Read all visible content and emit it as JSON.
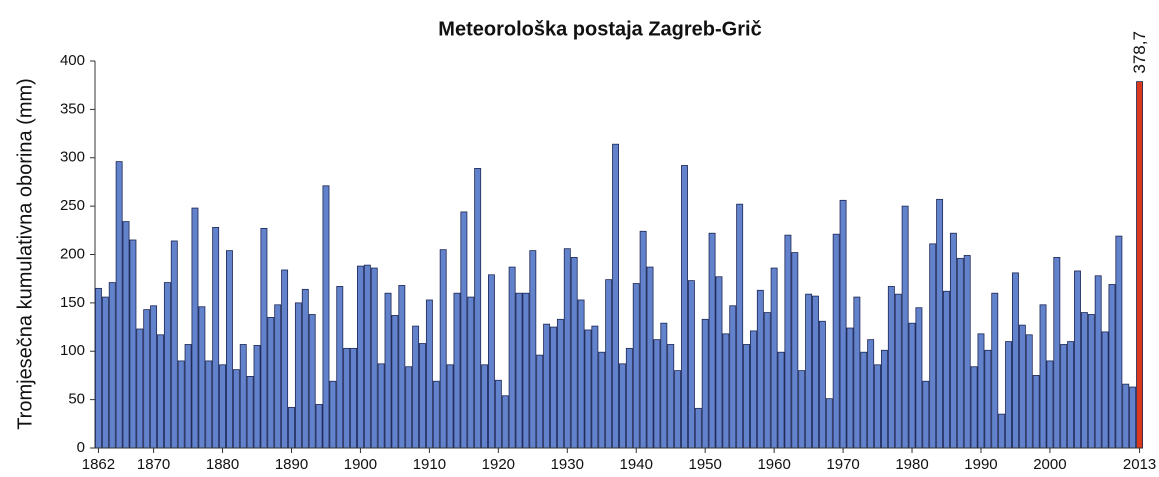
{
  "chart_data": {
    "type": "bar",
    "title": "Meteorološka postaja Zagreb-Grič",
    "y_label": "Tromjesečna kumulativna oborina (mm)",
    "categories": [
      "1862",
      null,
      null,
      null,
      null,
      null,
      null,
      null,
      "1870",
      null,
      null,
      null,
      null,
      null,
      null,
      null,
      null,
      null,
      "1880",
      null,
      null,
      null,
      null,
      null,
      null,
      null,
      null,
      null,
      "1890",
      null,
      null,
      null,
      null,
      null,
      null,
      null,
      null,
      null,
      "1900",
      null,
      null,
      null,
      null,
      null,
      null,
      null,
      null,
      null,
      "1910",
      null,
      null,
      null,
      null,
      null,
      null,
      null,
      null,
      null,
      "1920",
      null,
      null,
      null,
      null,
      null,
      null,
      null,
      null,
      null,
      "1930",
      null,
      null,
      null,
      null,
      null,
      null,
      null,
      null,
      null,
      "1940",
      null,
      null,
      null,
      null,
      null,
      null,
      null,
      null,
      null,
      "1950",
      null,
      null,
      null,
      null,
      null,
      null,
      null,
      null,
      null,
      "1960",
      null,
      null,
      null,
      null,
      null,
      null,
      null,
      null,
      null,
      "1970",
      null,
      null,
      null,
      null,
      null,
      null,
      null,
      null,
      null,
      "1980",
      null,
      null,
      null,
      null,
      null,
      null,
      null,
      null,
      null,
      "1990",
      null,
      null,
      null,
      null,
      null,
      null,
      null,
      null,
      null,
      "2000",
      null,
      null,
      null,
      null,
      null,
      null,
      null,
      null,
      null,
      null,
      null,
      null,
      "2013"
    ],
    "values": [
      165,
      156,
      171,
      296,
      234,
      215,
      123,
      143,
      147,
      117,
      171,
      214,
      90,
      107,
      248,
      146,
      90,
      228,
      86,
      204,
      81,
      107,
      74,
      106,
      227,
      135,
      148,
      184,
      42,
      150,
      164,
      138,
      45,
      271,
      69,
      167,
      103,
      103,
      188,
      189,
      186,
      87,
      160,
      137,
      168,
      84,
      126,
      108,
      153,
      69,
      205,
      86,
      160,
      244,
      156,
      289,
      86,
      179,
      70,
      54,
      187,
      160,
      160,
      204,
      96,
      128,
      125,
      133,
      206,
      197,
      153,
      122,
      126,
      99,
      174,
      314,
      87,
      103,
      170,
      224,
      187,
      112,
      129,
      107,
      80,
      292,
      173,
      41,
      133,
      222,
      177,
      118,
      147,
      252,
      107,
      121,
      163,
      140,
      186,
      99,
      220,
      202,
      80,
      159,
      157,
      131,
      51,
      221,
      256,
      124,
      156,
      99,
      112,
      86,
      101,
      167,
      159,
      250,
      129,
      145,
      69,
      211,
      257,
      162,
      222,
      196,
      199,
      84,
      118,
      101,
      160,
      35,
      110,
      181,
      127,
      117,
      75,
      148,
      90,
      197,
      107,
      110,
      183,
      140,
      138,
      178,
      120,
      169,
      219,
      66,
      63,
      378.7
    ],
    "value_labels": [
      null,
      null,
      null,
      null,
      null,
      null,
      null,
      null,
      null,
      null,
      null,
      null,
      null,
      null,
      null,
      null,
      null,
      null,
      null,
      null,
      null,
      null,
      null,
      null,
      null,
      null,
      null,
      null,
      null,
      null,
      null,
      null,
      null,
      null,
      null,
      null,
      null,
      null,
      null,
      null,
      null,
      null,
      null,
      null,
      null,
      null,
      null,
      null,
      null,
      null,
      null,
      null,
      null,
      null,
      null,
      null,
      null,
      null,
      null,
      null,
      null,
      null,
      null,
      null,
      null,
      null,
      null,
      null,
      null,
      null,
      null,
      null,
      null,
      null,
      null,
      null,
      null,
      null,
      null,
      null,
      null,
      null,
      null,
      null,
      null,
      null,
      null,
      null,
      null,
      null,
      null,
      null,
      null,
      null,
      null,
      null,
      null,
      null,
      null,
      null,
      null,
      null,
      null,
      null,
      null,
      null,
      null,
      null,
      null,
      null,
      null,
      null,
      null,
      null,
      null,
      null,
      null,
      null,
      null,
      null,
      null,
      null,
      null,
      null,
      null,
      null,
      null,
      null,
      null,
      null,
      null,
      null,
      null,
      null,
      null,
      null,
      null,
      null,
      null,
      null,
      null,
      null,
      null,
      null,
      null,
      null,
      null,
      null,
      null,
      null,
      null,
      "378,7"
    ],
    "color": "#6282cc",
    "highlight_color": "#d9391c",
    "ylim": [
      0,
      400
    ],
    "yticks": [
      0,
      50,
      100,
      150,
      200,
      250,
      300,
      350,
      400
    ]
  }
}
